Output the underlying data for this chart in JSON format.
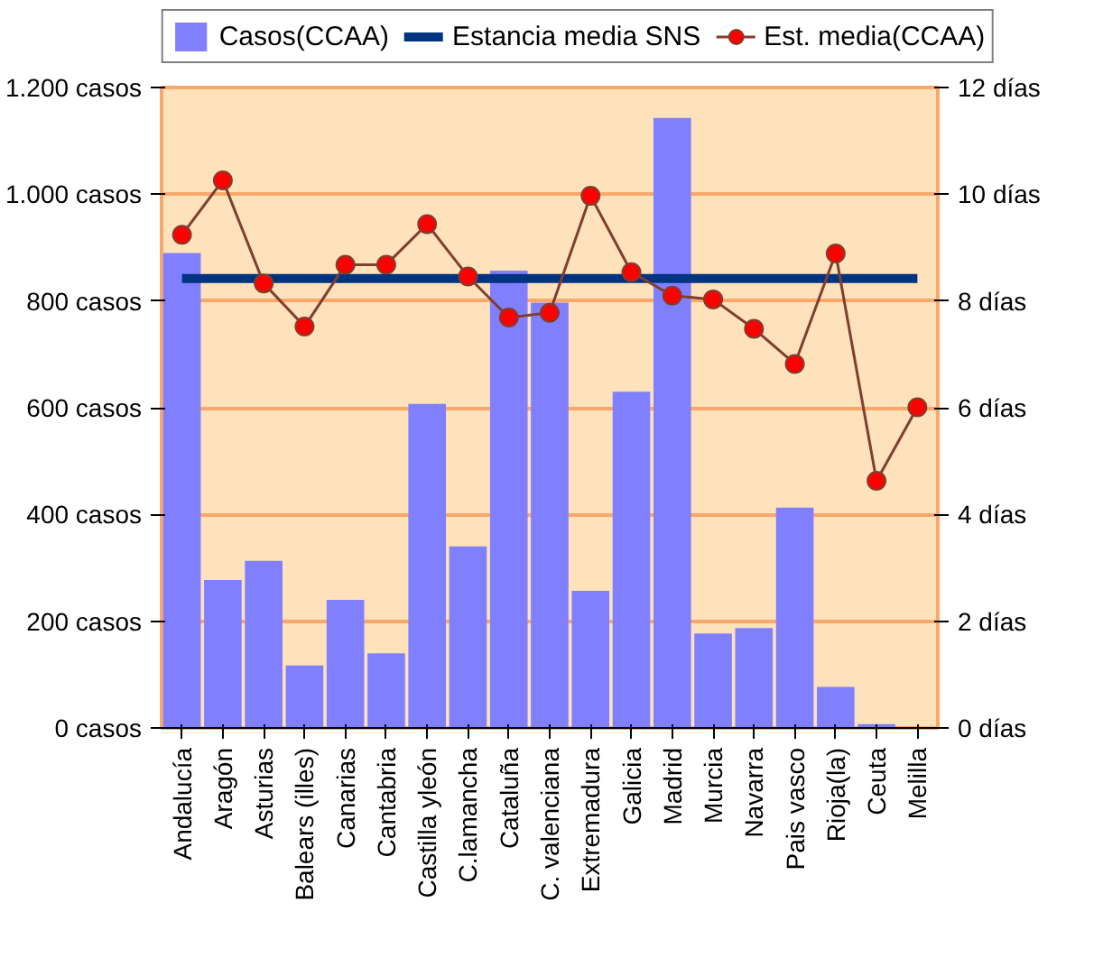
{
  "chart_data": {
    "type": "bar",
    "categories": [
      "Andalucía",
      "Aragón",
      "Asturias",
      "Balears (illes)",
      "Canarias",
      "Cantabria",
      "Castilla yleón",
      "C.lamancha",
      "Cataluña",
      "C. valenciana",
      "Extremadura",
      "Galicia",
      "Madrid",
      "Murcia",
      "Navarra",
      "Pais vasco",
      "Rioja(la)",
      "Ceuta",
      "Melilla"
    ],
    "series": [
      {
        "name": "Casos(CCAA)",
        "color": "#8080ff",
        "values": [
          890,
          277,
          313,
          117,
          240,
          140,
          607,
          340,
          857,
          797,
          257,
          630,
          1143,
          177,
          187,
          413,
          77,
          7,
          0
        ]
      },
      {
        "name": "Estancia media SNS",
        "type": "line",
        "axis": "y2",
        "marker": "none",
        "color": "#003380",
        "values": [
          8.42,
          8.42,
          8.42,
          8.42,
          8.42,
          8.42,
          8.42,
          8.42,
          8.42,
          8.42,
          8.42,
          8.42,
          8.42,
          8.42,
          8.42,
          8.42,
          8.42,
          8.42,
          8.42
        ]
      },
      {
        "name": "Est. media(CCAA)",
        "type": "line",
        "axis": "y2",
        "marker": "circle",
        "color": "#ff0000",
        "values": [
          9.24,
          10.26,
          8.33,
          7.52,
          8.68,
          8.68,
          9.44,
          8.46,
          7.69,
          7.78,
          9.97,
          8.54,
          8.1,
          8.03,
          7.48,
          6.82,
          8.89,
          4.63,
          6.01
        ]
      }
    ],
    "ylim": [
      0,
      1200
    ],
    "yticks": [
      {
        "value": 0,
        "label": "0 casos"
      },
      {
        "value": 200,
        "label": "200 casos"
      },
      {
        "value": 400,
        "label": "400 casos"
      },
      {
        "value": 600,
        "label": "600 casos"
      },
      {
        "value": 800,
        "label": "800 casos"
      },
      {
        "value": 1000,
        "label": "1.000 casos"
      },
      {
        "value": 1200,
        "label": "1.200 casos"
      }
    ],
    "y2lim": [
      0,
      12
    ],
    "y2ticks": [
      {
        "value": 0,
        "label": "0 días"
      },
      {
        "value": 2,
        "label": "2 días"
      },
      {
        "value": 4,
        "label": "4 días"
      },
      {
        "value": 6,
        "label": "6 días"
      },
      {
        "value": 8,
        "label": "8 días"
      },
      {
        "value": 10,
        "label": "10 días"
      },
      {
        "value": 12,
        "label": "12 días"
      }
    ],
    "grid": "y",
    "legend": "top"
  }
}
